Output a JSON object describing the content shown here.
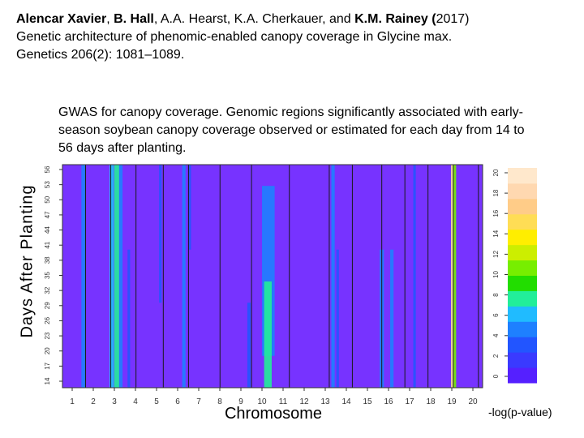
{
  "citation": {
    "authors_lead": "Alencar Xavier",
    "sep1": ", ",
    "author2": "B. Hall",
    "authors_mid": ", A.A. Hearst, K.A. Cherkauer, and ",
    "author_last": "K.M. Rainey",
    "year_open": " (",
    "year": "2017)",
    "line2": "Genetic architecture of phenomic-enabled canopy coverage in Glycine max.",
    "line3": "Genetics 206(2): 1081–1089."
  },
  "caption": {
    "text": "GWAS for canopy coverage. Genomic regions significantly associated with early-season soybean canopy coverage observed or estimated for each day from 14 to 56 days after planting."
  },
  "colors": {
    "background": "#7733ff",
    "divider": "#1a1a1a",
    "scale": [
      "#5520ff",
      "#3a3aff",
      "#2255ff",
      "#1e80ff",
      "#20bbff",
      "#22ee99",
      "#22dd00",
      "#77ee00",
      "#ccee00",
      "#ffee00",
      "#ffdd55",
      "#ffcc88",
      "#ffd8b0",
      "#ffe8cc"
    ]
  },
  "chart_data": {
    "type": "heatmap",
    "title": "GWAS for canopy coverage",
    "xlabel": "Chromosome",
    "ylabel": "Days After Planting",
    "colorbar_label": "-log(p-value)",
    "x_ticks": [
      "1",
      "2",
      "3",
      "4",
      "5",
      "6",
      "7",
      "8",
      "9",
      "10",
      "11",
      "12",
      "13",
      "14",
      "15",
      "16",
      "17",
      "18",
      "19",
      "20"
    ],
    "y_ticks": [
      "14",
      "17",
      "20",
      "23",
      "26",
      "29",
      "32",
      "35",
      "38",
      "41",
      "44",
      "47",
      "50",
      "53",
      "56"
    ],
    "colorbar_ticks": [
      "0",
      "2",
      "4",
      "6",
      "8",
      "10",
      "12",
      "14",
      "16",
      "18",
      "20"
    ],
    "colorbar_range": [
      0,
      20
    ],
    "ylim": [
      14,
      56
    ],
    "chromosome_boundaries": [
      0.055,
      0.115,
      0.175,
      0.24,
      0.3,
      0.375,
      0.45,
      0.54,
      0.635,
      0.69,
      0.76,
      0.815,
      0.87,
      0.93,
      0.99
    ],
    "features": [
      {
        "chrom": "1",
        "pos": 0.045,
        "width": 0.01,
        "value": 4,
        "day_from": 14,
        "day_to": 56
      },
      {
        "chrom": "2",
        "pos": 0.112,
        "width": 0.01,
        "value": 6,
        "day_from": 14,
        "day_to": 56
      },
      {
        "chrom": "3",
        "pos": 0.123,
        "width": 0.012,
        "value": 7,
        "day_from": 14,
        "day_to": 56
      },
      {
        "chrom": "3",
        "pos": 0.135,
        "width": 0.008,
        "value": 5,
        "day_from": 14,
        "day_to": 56
      },
      {
        "chrom": "3",
        "pos": 0.155,
        "width": 0.006,
        "value": 3,
        "day_from": 14,
        "day_to": 40
      },
      {
        "chrom": "5",
        "pos": 0.23,
        "width": 0.006,
        "value": 3,
        "day_from": 30,
        "day_to": 56
      },
      {
        "chrom": "6",
        "pos": 0.285,
        "width": 0.008,
        "value": 4,
        "day_from": 14,
        "day_to": 56
      },
      {
        "chrom": "6",
        "pos": 0.3,
        "width": 0.006,
        "value": 3,
        "day_from": 40,
        "day_to": 56
      },
      {
        "chrom": "8",
        "pos": 0.44,
        "width": 0.008,
        "value": 3,
        "day_from": 14,
        "day_to": 30
      },
      {
        "chrom": "10",
        "pos": 0.475,
        "width": 0.03,
        "value": 5,
        "day_from": 20,
        "day_to": 52
      },
      {
        "chrom": "10",
        "pos": 0.48,
        "width": 0.018,
        "value": 8,
        "day_from": 14,
        "day_to": 34
      },
      {
        "chrom": "13",
        "pos": 0.64,
        "width": 0.008,
        "value": 5,
        "day_from": 14,
        "day_to": 56
      },
      {
        "chrom": "13",
        "pos": 0.652,
        "width": 0.006,
        "value": 3,
        "day_from": 14,
        "day_to": 40
      },
      {
        "chrom": "15",
        "pos": 0.755,
        "width": 0.01,
        "value": 4,
        "day_from": 14,
        "day_to": 40
      },
      {
        "chrom": "16",
        "pos": 0.78,
        "width": 0.008,
        "value": 4,
        "day_from": 14,
        "day_to": 40
      },
      {
        "chrom": "17",
        "pos": 0.835,
        "width": 0.006,
        "value": 3,
        "day_from": 14,
        "day_to": 56
      },
      {
        "chrom": "19",
        "pos": 0.925,
        "width": 0.012,
        "value": 11,
        "day_from": 14,
        "day_to": 56
      },
      {
        "chrom": "19",
        "pos": 0.925,
        "width": 0.005,
        "value": 18,
        "day_from": 14,
        "day_to": 56
      }
    ]
  }
}
